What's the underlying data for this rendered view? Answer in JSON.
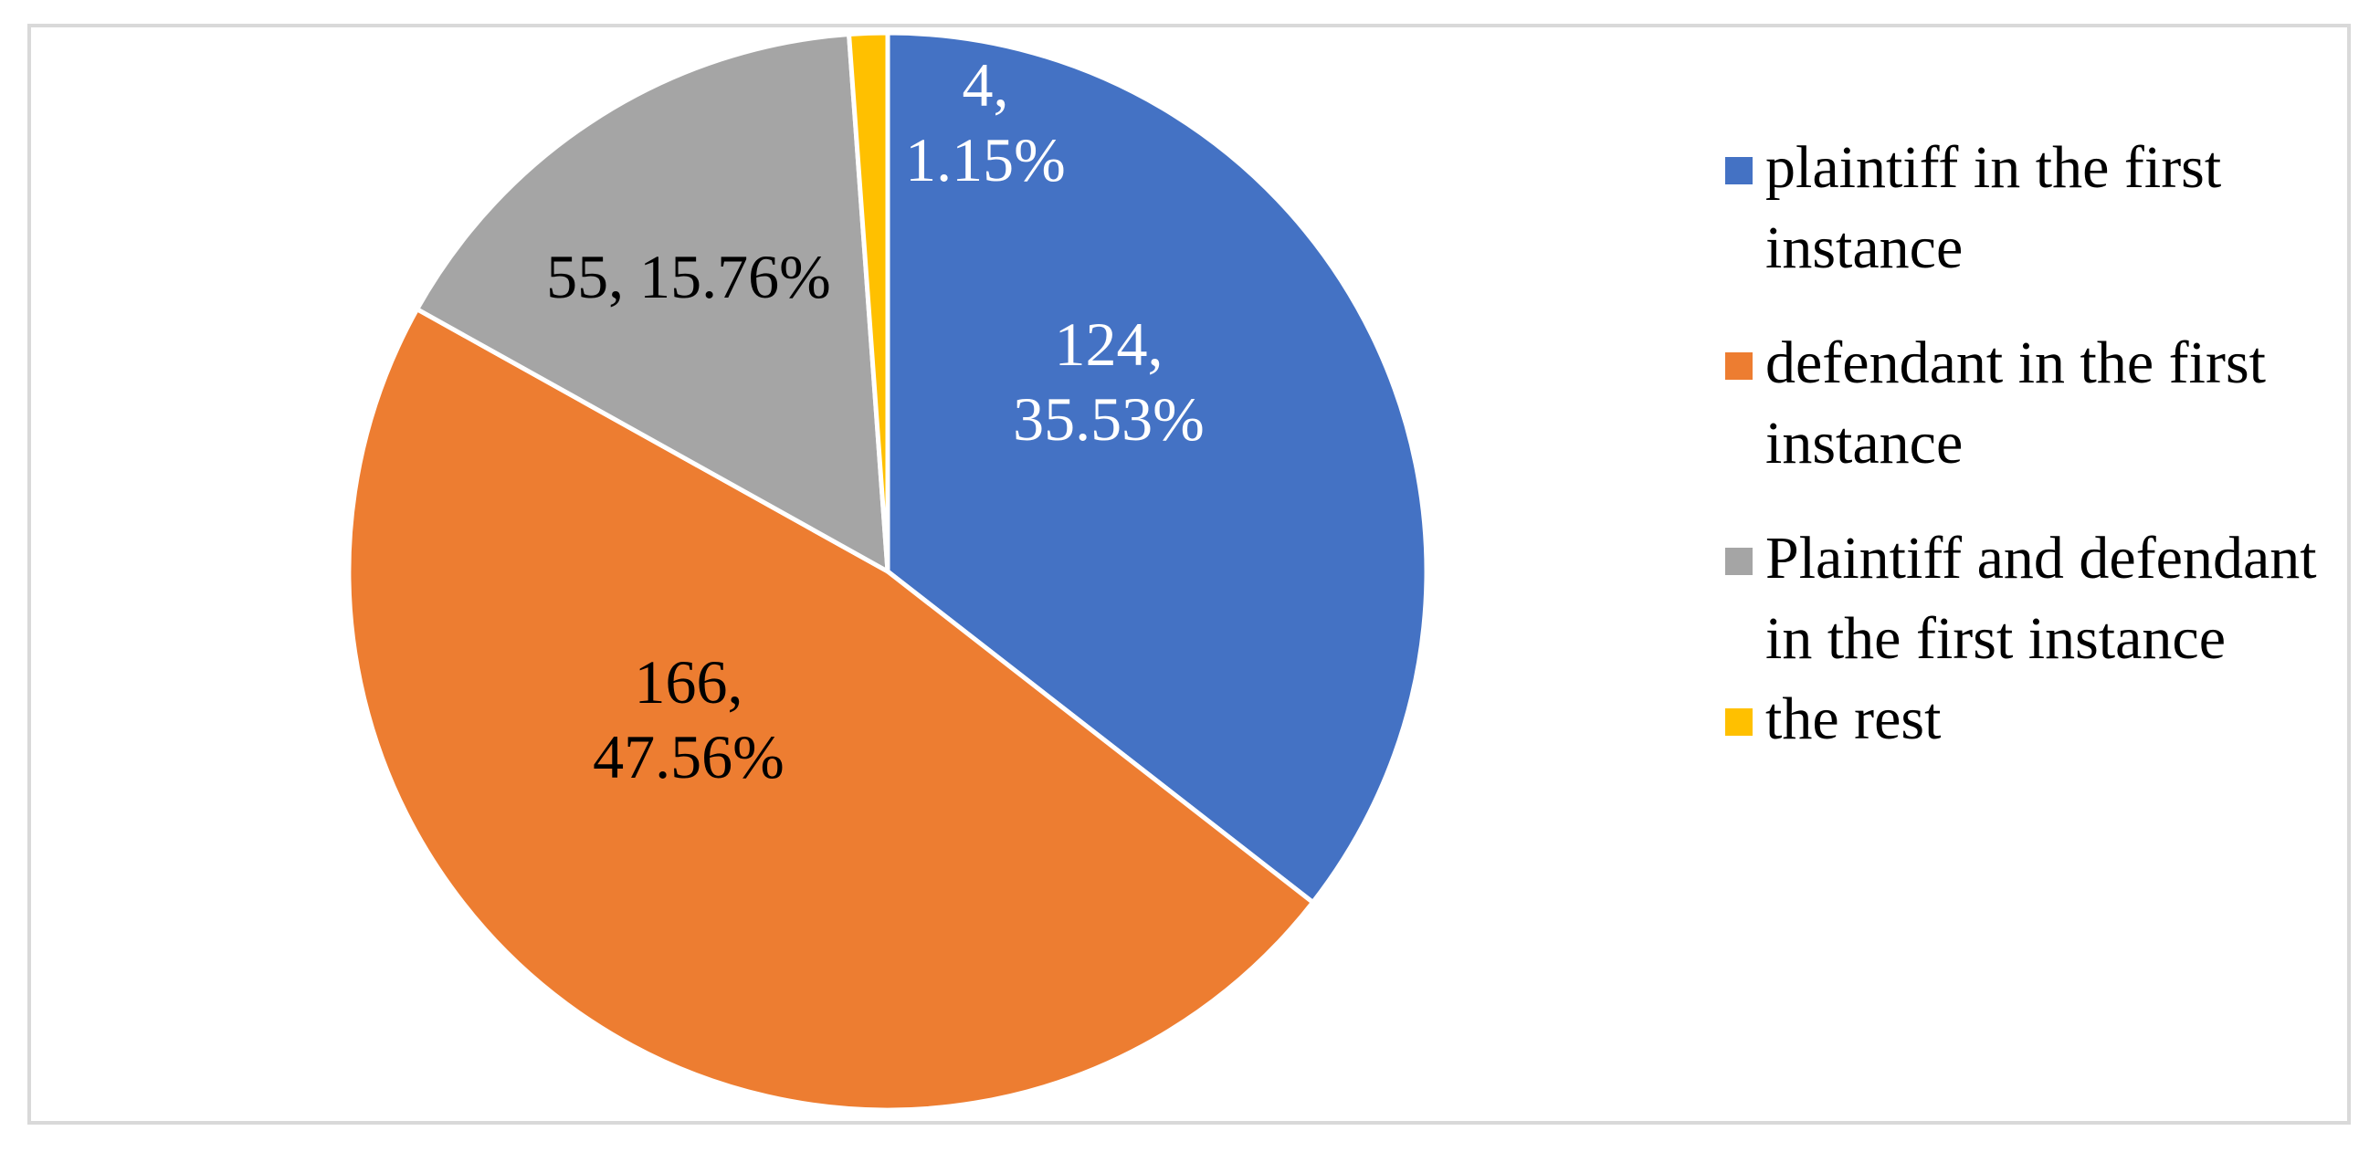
{
  "chart_data": {
    "type": "pie",
    "title": "",
    "slices": [
      {
        "name": "plaintiff in the first instance",
        "value": 124,
        "percent": "35.53%",
        "label": "124, 35.53%",
        "color": "#4472C4",
        "label_color": "#FFFFFF"
      },
      {
        "name": "defendant in the first instance",
        "value": 166,
        "percent": "47.56%",
        "label": "166, 47.56%",
        "color": "#ED7D31",
        "label_color": "#000000"
      },
      {
        "name": "Plaintiff and defendant in the first instance",
        "value": 55,
        "percent": "15.76%",
        "label": "55, 15.76%",
        "color": "#A5A5A5",
        "label_color": "#000000"
      },
      {
        "name": "the rest",
        "value": 4,
        "percent": "1.15%",
        "label": "4, 1.15%",
        "color": "#FFC000",
        "label_color": "#FFFFFF"
      }
    ],
    "legend": {
      "position": "right",
      "entries": [
        "plaintiff in the first instance",
        "defendant in the first instance",
        "Plaintiff and defendant in the first instance",
        "the rest"
      ]
    }
  }
}
